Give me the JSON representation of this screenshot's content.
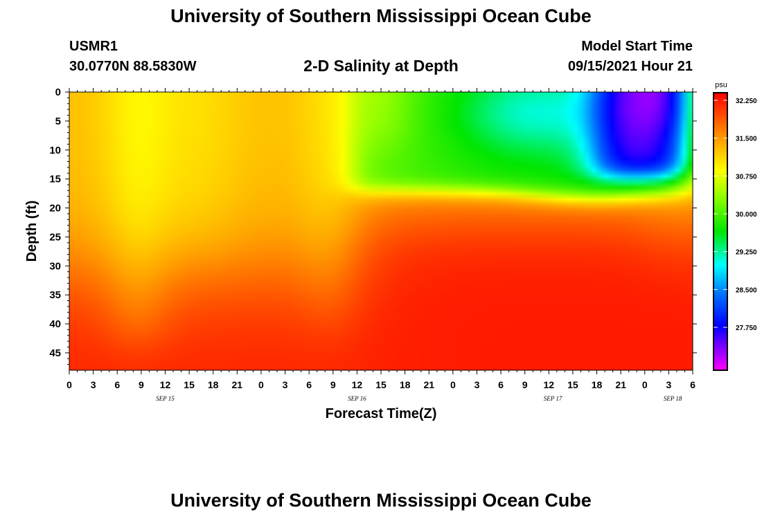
{
  "header": {
    "title": "University of Southern Mississippi Ocean Cube",
    "station_id": "USMR1",
    "coordinates": "30.0770N  88.5830W",
    "subtitle": "2-D Salinity at Depth",
    "start_label": "Model Start Time",
    "start_value": "09/15/2021 Hour 21"
  },
  "footer": {
    "title": "University of Southern Mississippi Ocean Cube"
  },
  "chart_data": {
    "type": "heatmap",
    "xlabel": "Forecast Time(Z)",
    "ylabel": "Depth (ft)",
    "x_tick_labels": [
      "0",
      "3",
      "6",
      "9",
      "12",
      "15",
      "18",
      "21",
      "0",
      "3",
      "6",
      "9",
      "12",
      "15",
      "18",
      "21",
      "0",
      "3",
      "6",
      "9",
      "12",
      "15",
      "18",
      "21",
      "0",
      "3",
      "6"
    ],
    "x_range_hours": [
      0,
      78
    ],
    "date_labels": [
      {
        "label": "SEP 15",
        "hour": 12
      },
      {
        "label": "SEP 16",
        "hour": 36
      },
      {
        "label": "SEP 17",
        "hour": 60.5
      },
      {
        "label": "SEP 18",
        "hour": 75.5
      }
    ],
    "y_ticks": [
      0,
      5,
      10,
      15,
      20,
      25,
      30,
      35,
      40,
      45
    ],
    "y_range_ft": [
      0,
      48
    ],
    "y_inverted": true,
    "colorbar": {
      "unit": "psu",
      "ticks": [
        "32.250",
        "31.500",
        "30.750",
        "30.000",
        "29.250",
        "28.500",
        "27.750"
      ],
      "range": [
        26.9,
        32.4
      ]
    }
  }
}
